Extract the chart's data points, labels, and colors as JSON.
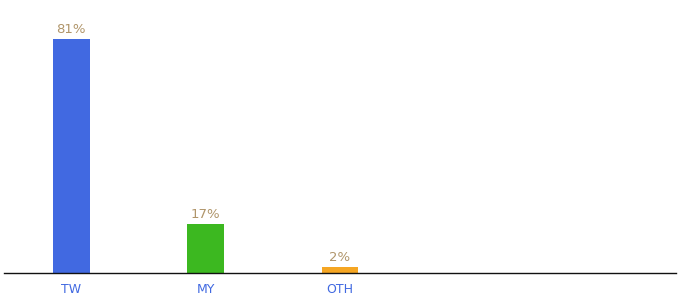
{
  "categories": [
    "TW",
    "MY",
    "OTH"
  ],
  "values": [
    81,
    17,
    2
  ],
  "bar_colors": [
    "#4169e1",
    "#3cb820",
    "#f5a623"
  ],
  "labels": [
    "81%",
    "17%",
    "2%"
  ],
  "title": "",
  "label_fontsize": 9.5,
  "tick_fontsize": 9,
  "label_color": "#b0956a",
  "tick_color": "#4169e1",
  "ylim": [
    0,
    93
  ],
  "bar_width": 0.55,
  "x_positions": [
    1,
    3,
    5
  ],
  "xlim": [
    0,
    10
  ],
  "background_color": "#ffffff"
}
